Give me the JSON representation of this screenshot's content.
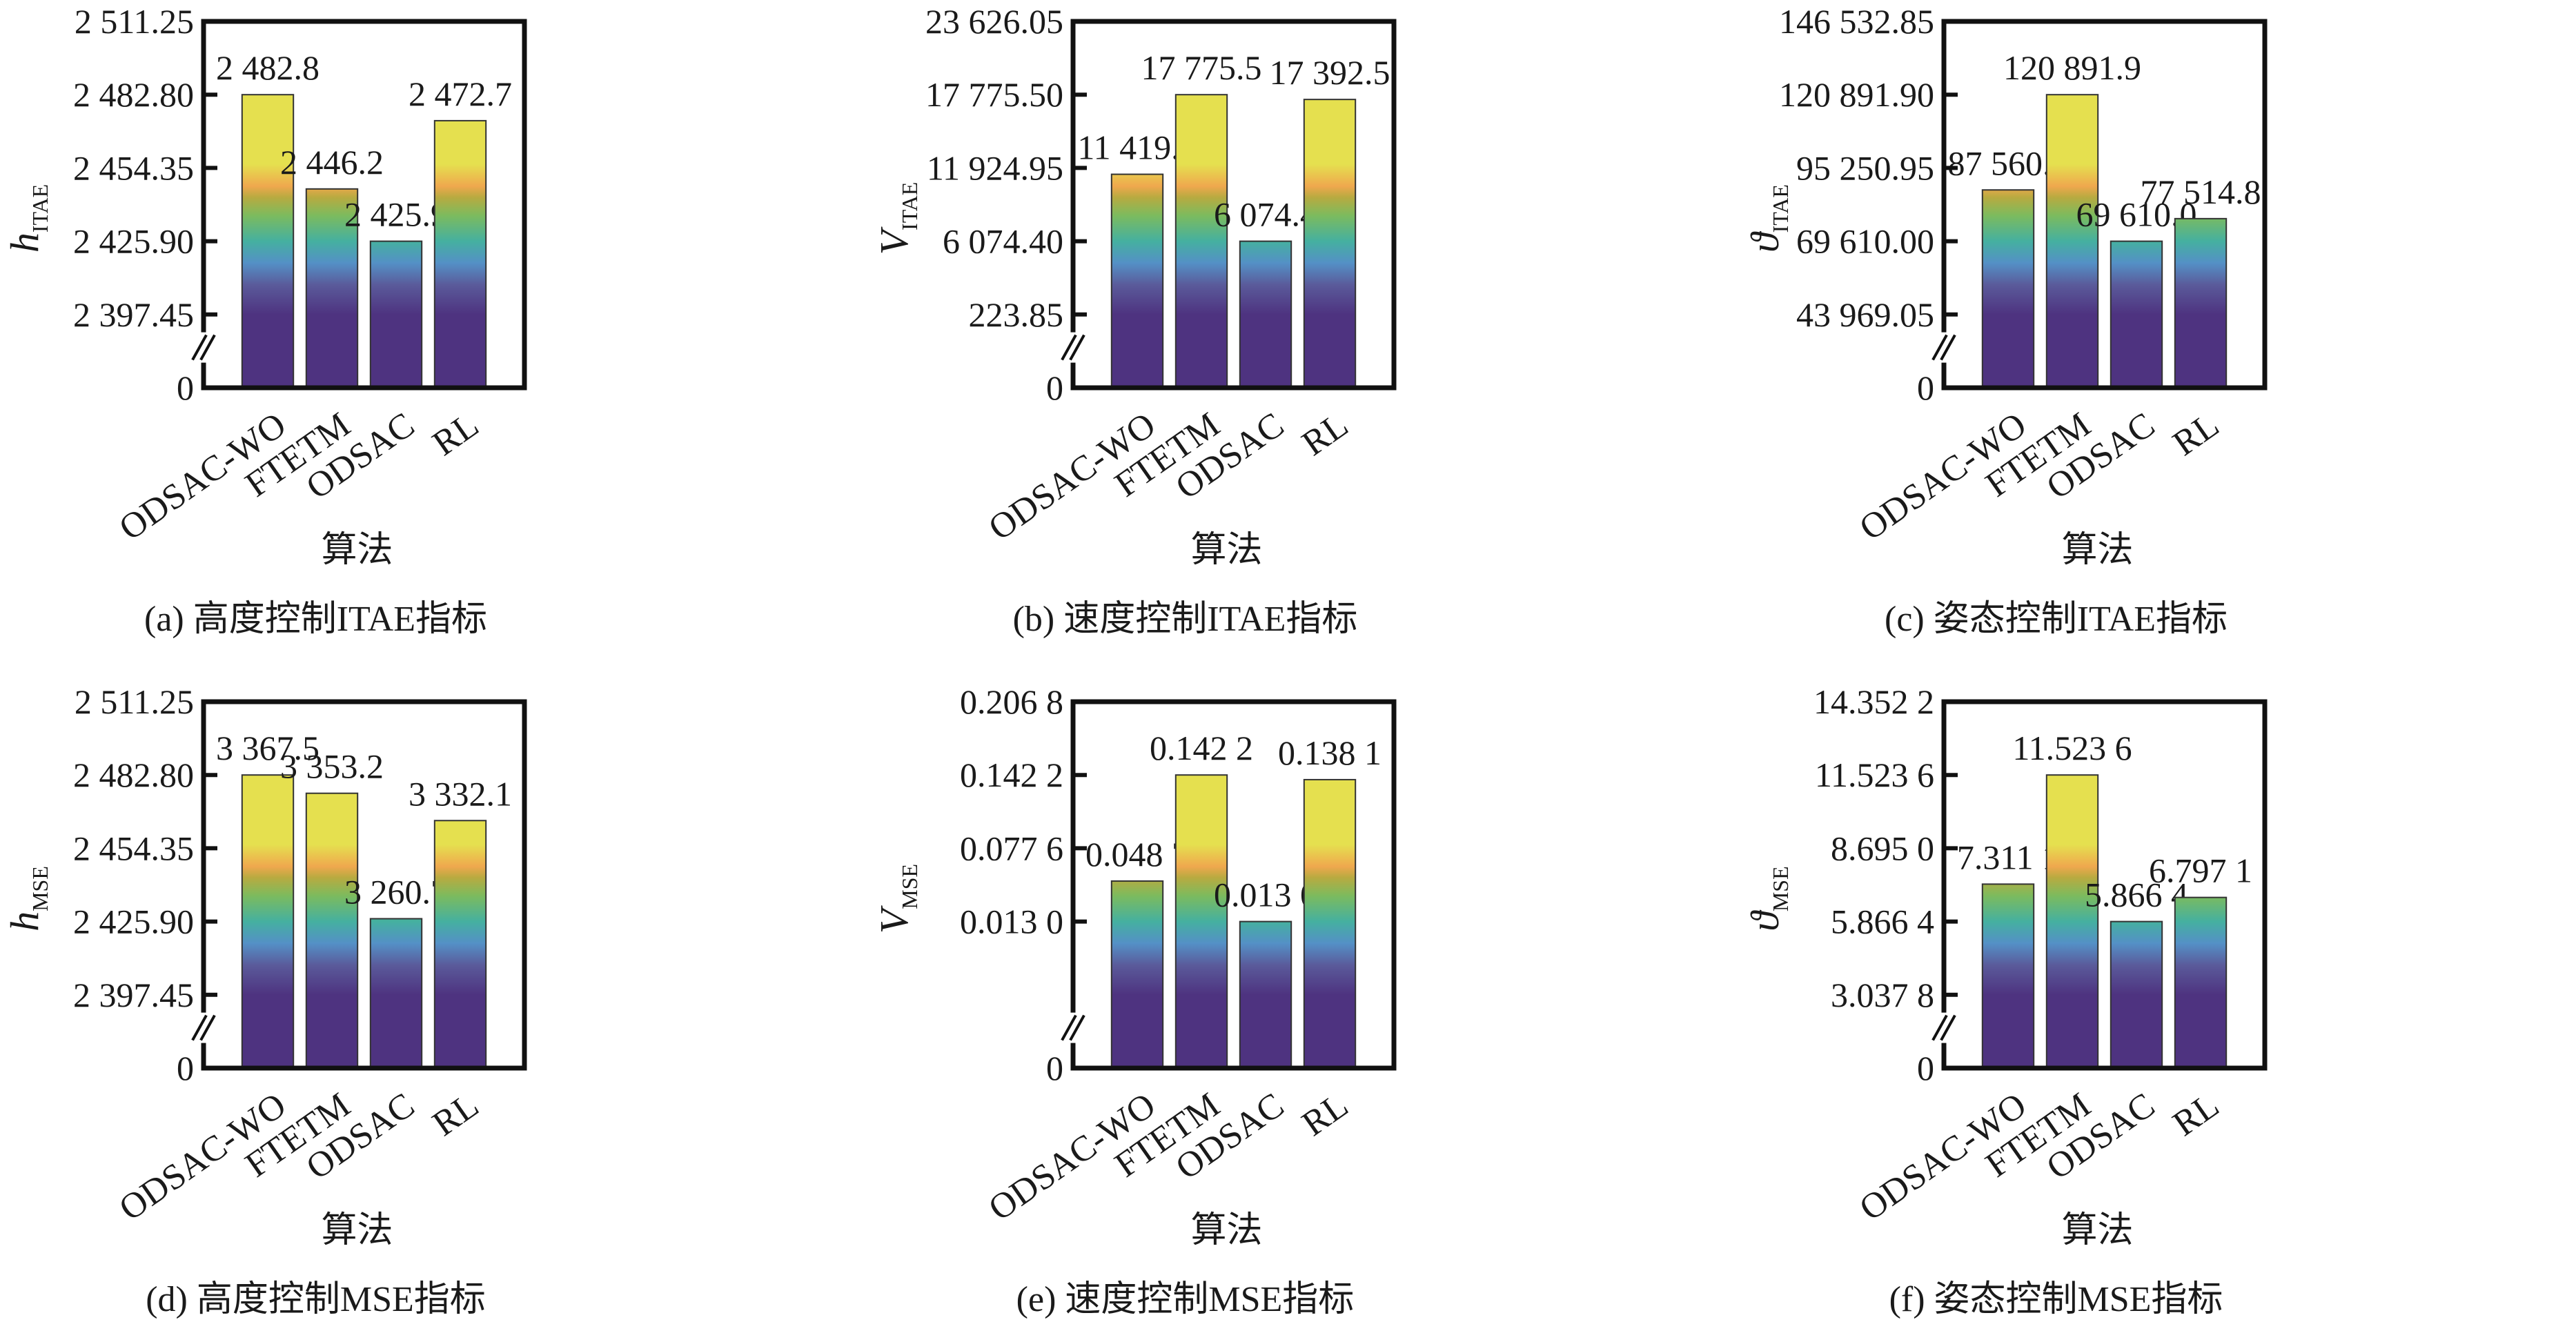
{
  "gradient_colors": [
    "#4E3380",
    "#4E3380",
    "#5A5A9A",
    "#5490C6",
    "#45B0A0",
    "#7CBB5E",
    "#B8AA40",
    "#EFA84E",
    "#E5E04F",
    "#E5E04F"
  ],
  "chart_data": [
    {
      "type": "bar",
      "caption": "(a) 高度控制ITAE指标",
      "xlabel": "算法",
      "ylabel": {
        "symbol": "h",
        "sub": "ITAE"
      },
      "yticks": [
        "2 511.25",
        "2 482.80",
        "2 454.35",
        "2 425.90",
        "2 397.45",
        "0"
      ],
      "ytick_values": [
        2511.25,
        2482.8,
        2454.35,
        2425.9,
        2397.45,
        0
      ],
      "axis_break": true,
      "categories": [
        "ODSAC-WO",
        "FTETM",
        "ODSAC",
        "RL"
      ],
      "values": [
        2482.8,
        2446.2,
        2425.9,
        2472.7
      ],
      "value_labels": [
        "2 482.8",
        "2 446.2",
        "2 425.9",
        "2 472.7"
      ]
    },
    {
      "type": "bar",
      "caption": "(b) 速度控制ITAE指标",
      "xlabel": "算法",
      "ylabel": {
        "symbol": "V",
        "sub": "ITAE"
      },
      "yticks": [
        "23 626.05",
        "17 775.50",
        "11 924.95",
        "6 074.40",
        "223.85",
        "0"
      ],
      "ytick_values": [
        23626.05,
        17775.5,
        11924.95,
        6074.4,
        223.85,
        0
      ],
      "axis_break": true,
      "categories": [
        "ODSAC-WO",
        "FTETM",
        "ODSAC",
        "RL"
      ],
      "values": [
        11419.7,
        17775.5,
        6074.4,
        17392.5
      ],
      "value_labels": [
        "11 419.7",
        "17 775.5",
        "6 074.4",
        "17 392.5"
      ]
    },
    {
      "type": "bar",
      "caption": "(c) 姿态控制ITAE指标",
      "xlabel": "算法",
      "ylabel": {
        "symbol": "ϑ",
        "sub": "ITAE"
      },
      "yticks": [
        "146 532.85",
        "120 891.90",
        "95 250.95",
        "69 610.00",
        "43 969.05",
        "0"
      ],
      "ytick_values": [
        146532.85,
        120891.9,
        95250.95,
        69610.0,
        43969.05,
        0
      ],
      "axis_break": true,
      "categories": [
        "ODSAC-WO",
        "FTETM",
        "ODSAC",
        "RL"
      ],
      "values": [
        87560.2,
        120891.9,
        69610.0,
        77514.8
      ],
      "value_labels": [
        "87 560.2",
        "120 891.9",
        "69 610.0",
        "77 514.8"
      ]
    },
    {
      "type": "bar",
      "caption": "(d) 高度控制MSE指标",
      "xlabel": "算法",
      "ylabel": {
        "symbol": "h",
        "sub": "MSE"
      },
      "yticks": [
        "2 511.25",
        "2 482.80",
        "2 454.35",
        "2 425.90",
        "2 397.45",
        "0"
      ],
      "ytick_values": [
        2511.25,
        2482.8,
        2454.35,
        2425.9,
        2397.45,
        0
      ],
      "axis_break": true,
      "categories": [
        "ODSAC-WO",
        "FTETM",
        "ODSAC",
        "RL"
      ],
      "values": [
        3367.5,
        3353.2,
        3260.7,
        3332.1
      ],
      "values_on_axis": [
        2482.8,
        2475.7,
        2427.0,
        2465.1
      ],
      "value_labels": [
        "3 367.5",
        "3 353.2",
        "3 260.7",
        "3 332.1"
      ]
    },
    {
      "type": "bar",
      "caption": "(e) 速度控制MSE指标",
      "xlabel": "算法",
      "ylabel": {
        "symbol": "V",
        "sub": "MSE"
      },
      "yticks": [
        "0.206 8",
        "0.142 2",
        "0.077 6",
        "0.013 0",
        "0"
      ],
      "ytick_values": [
        0.2068,
        0.1422,
        0.0776,
        0.013,
        0
      ],
      "axis_break": true,
      "categories": [
        "ODSAC-WO",
        "FTETM",
        "ODSAC",
        "RL"
      ],
      "values": [
        0.0487,
        0.1422,
        0.013,
        0.1381
      ],
      "value_labels": [
        "0.048 7",
        "0.142 2",
        "0.013 0",
        "0.138 1"
      ]
    },
    {
      "type": "bar",
      "caption": "(f) 姿态控制MSE指标",
      "xlabel": "算法",
      "ylabel": {
        "symbol": "ϑ",
        "sub": "MSE"
      },
      "yticks": [
        "14.352 2",
        "11.523 6",
        "8.695 0",
        "5.866 4",
        "3.037 8",
        "0"
      ],
      "ytick_values": [
        14.3522,
        11.5236,
        8.695,
        5.8664,
        3.0378,
        0
      ],
      "axis_break": true,
      "categories": [
        "ODSAC-WO",
        "FTETM",
        "ODSAC",
        "RL"
      ],
      "values": [
        7.3111,
        11.5236,
        5.8664,
        6.7971
      ],
      "value_labels": [
        "7.311 1",
        "11.523 6",
        "5.866 4",
        "6.797 1"
      ]
    }
  ]
}
